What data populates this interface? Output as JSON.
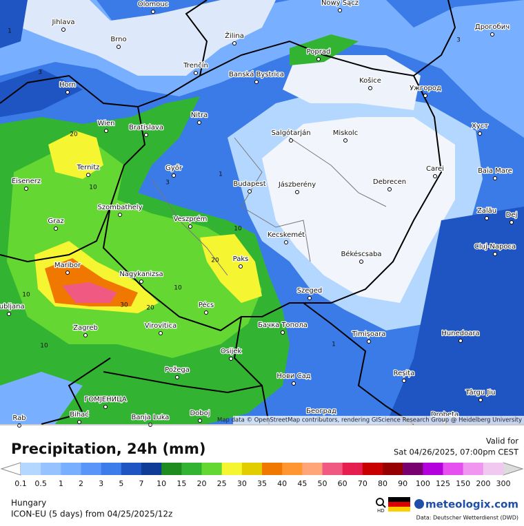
{
  "header": {
    "title": "Precipitation, 24h (mm)",
    "valid_label": "Valid for",
    "valid_time": "Sat 04/26/2025, 07:00pm CEST"
  },
  "map": {
    "attribution": "Map data © OpenStreetMap contributors, rendering GIScience Research Group @ Heidelberg University",
    "cities": [
      "Olomouc",
      "Nowy Sącz",
      "Jihlava",
      "Дрогобич",
      "Brno",
      "Žilina",
      "Poprad",
      "Trenčín",
      "Banská Bystrica",
      "Horn",
      "Košice",
      "Ужгород",
      "Nitra",
      "Wien",
      "Bratislava",
      "Salgótarján",
      "Miskolc",
      "Хуст",
      "Ternitz",
      "Győr",
      "Carei",
      "Baia Mare",
      "Budapest",
      "Jászberény",
      "Debrecen",
      "Eisenerz",
      "Szombathely",
      "Zalău",
      "Dej",
      "Veszprém",
      "Graz",
      "Kecskemét",
      "Cluj-Napoca",
      "Paks",
      "Békéscsaba",
      "Maribor",
      "Nagykanizsa",
      "Szeged",
      "Ljubljana",
      "Pécs",
      "Zagreb",
      "Virovitica",
      "Бачка Топола",
      "Timișoara",
      "Hunedoara",
      "Osijek",
      "Požega",
      "Нови Сад",
      "Reșița",
      "Târgu Jiu",
      "ГОМЈЕНИЦА",
      "Београд",
      "Drobeta",
      "Bihać",
      "Banja Luka",
      "Doboj",
      "Rab"
    ],
    "contour_labels": [
      20,
      10,
      20,
      10,
      30,
      20,
      10,
      10,
      3,
      1,
      3,
      1,
      1,
      3,
      10
    ]
  },
  "legend": {
    "labels": [
      "0.1",
      "0.5",
      1,
      2,
      3,
      5,
      7,
      10,
      15,
      20,
      25,
      30,
      35,
      40,
      45,
      50,
      60,
      70,
      80,
      90,
      100,
      125,
      150,
      200,
      300
    ],
    "colors": [
      "#b4d7ff",
      "#96c3ff",
      "#78afff",
      "#5a96fa",
      "#3c7deb",
      "#1e55c3",
      "#0f3c96",
      "#1e8c1e",
      "#32b432",
      "#64d732",
      "#f5f532",
      "#e1cd00",
      "#f07800",
      "#ff9632",
      "#ffa578",
      "#f05a82",
      "#e61e50",
      "#c80000",
      "#960000",
      "#78006e",
      "#b400dc",
      "#e650f0",
      "#f096f0",
      "#f0c8f0",
      "#dcdcdc"
    ]
  },
  "footer": {
    "region": "Hungary",
    "model": "ICON-EU (5 days) from 04/25/2025/12z",
    "hd": "HD",
    "brand": "meteologix.com",
    "source": "Data: Deutscher Wetterdienst (DWD)"
  }
}
